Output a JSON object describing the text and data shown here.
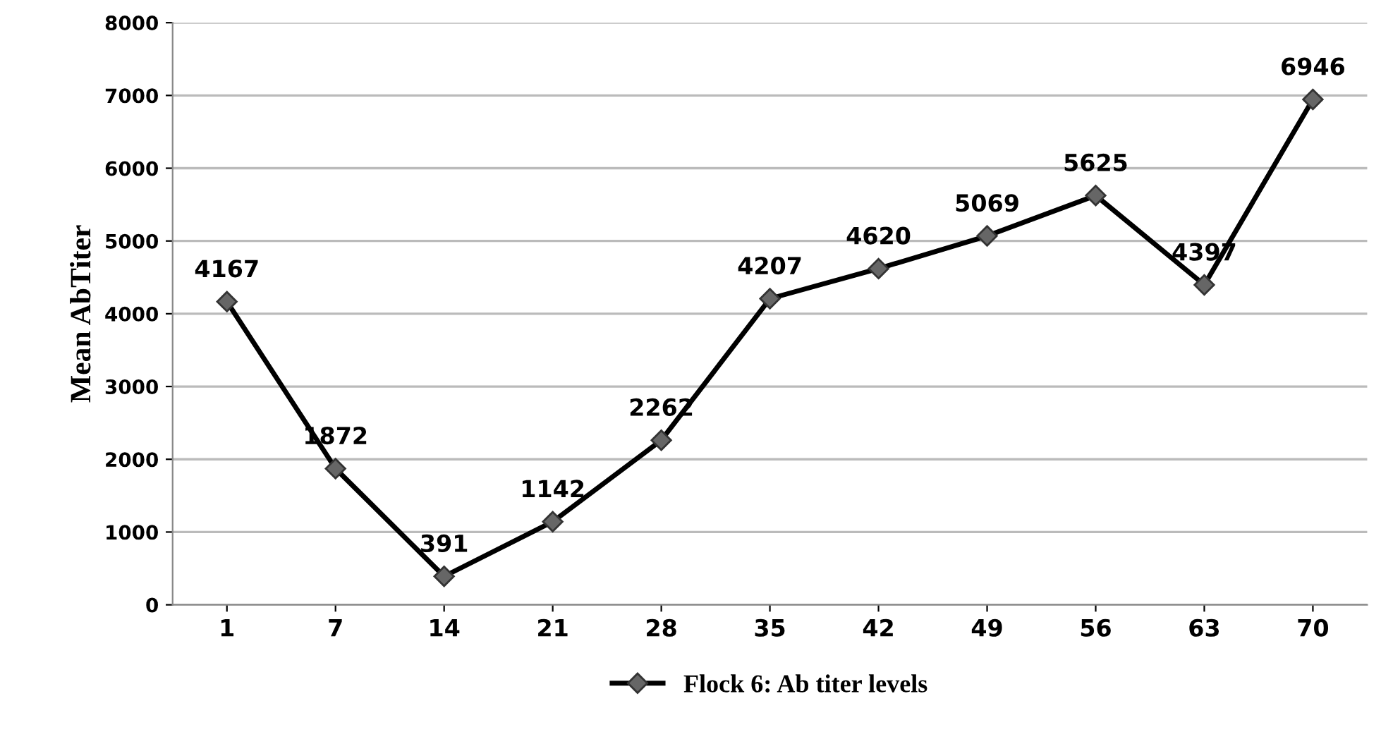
{
  "chart_data": {
    "type": "line",
    "ylabel": "Mean AbTiter",
    "categories": [
      "1",
      "7",
      "14",
      "21",
      "28",
      "35",
      "42",
      "49",
      "56",
      "63",
      "70"
    ],
    "series": [
      {
        "name": "Flock 6: Ab titer levels",
        "color": "#000000",
        "values": [
          4167,
          1872,
          391,
          1142,
          2262,
          4207,
          4620,
          5069,
          5625,
          4397,
          6946
        ]
      }
    ],
    "ylim": [
      0,
      8000
    ],
    "yticks": [
      0,
      1000,
      2000,
      3000,
      4000,
      5000,
      6000,
      7000,
      8000
    ],
    "grid": "y",
    "legend": "bottom",
    "marker": "diamond",
    "line_style": "solid",
    "data_labels": true
  }
}
